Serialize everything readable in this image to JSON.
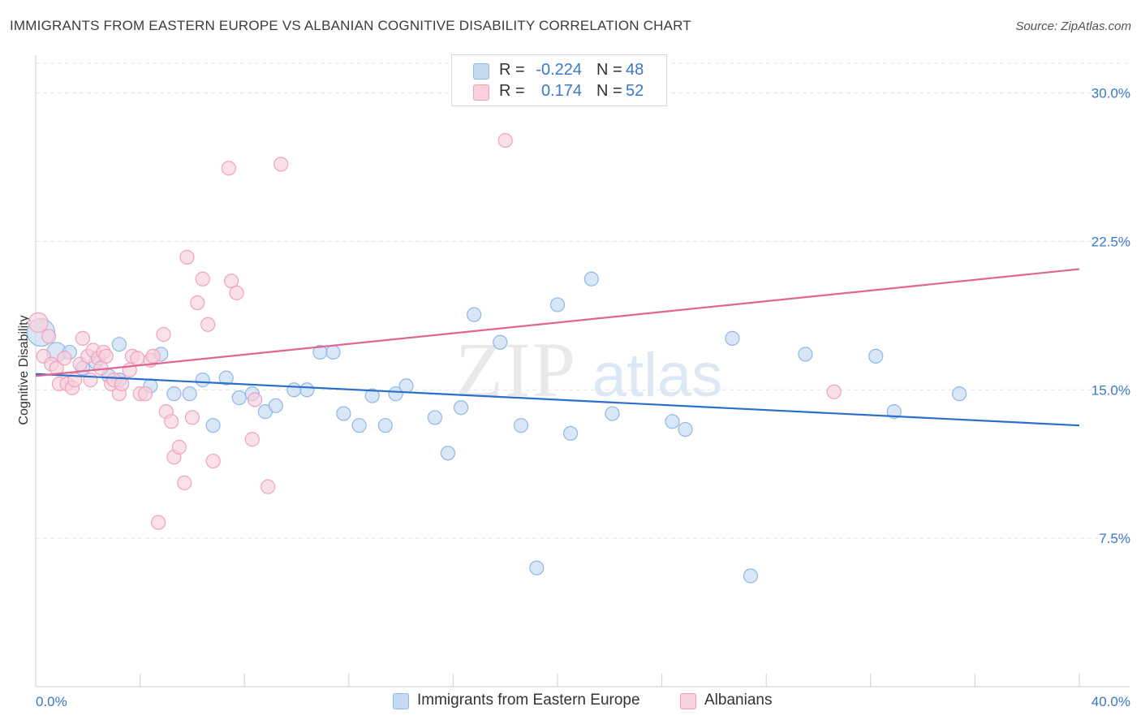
{
  "title": "IMMIGRANTS FROM EASTERN EUROPE VS ALBANIAN COGNITIVE DISABILITY CORRELATION CHART",
  "source": "Source: ZipAtlas.com",
  "watermark": {
    "zip": "ZIP",
    "atlas": "atlas"
  },
  "colors": {
    "blue": "#8fb8e6",
    "blue_fill": "#c5d9f1",
    "blue_line": "#2a6fcb",
    "pink": "#f0a2bd",
    "pink_fill": "#f8cfdc",
    "pink_line": "#e0668f",
    "axis_label": "#3a78c8",
    "grid": "#e3e3e3"
  },
  "legend": {
    "rows": [
      {
        "r_label": "R =",
        "r_value": "-0.224",
        "n_label": "N =",
        "n_value": "48"
      },
      {
        "r_label": "R =",
        "r_value": "0.174",
        "n_label": "N =",
        "n_value": "52"
      }
    ]
  },
  "bottom_legend": {
    "series1": "Immigrants from Eastern Europe",
    "series2": "Albanians"
  },
  "chart_data": {
    "type": "scatter",
    "title": "IMMIGRANTS FROM EASTERN EUROPE VS ALBANIAN COGNITIVE DISABILITY CORRELATION CHART",
    "xlabel": "",
    "ylabel": "Cognitive Disability",
    "xlim": [
      0,
      40
    ],
    "ylim": [
      0,
      31.5
    ],
    "x_tick_labels": [
      "0.0%",
      "40.0%"
    ],
    "y_ticks": [
      7.5,
      15.0,
      22.5,
      30.0
    ],
    "y_tick_labels": [
      "7.5%",
      "15.0%",
      "22.5%",
      "30.0%"
    ],
    "grid": true,
    "legend_position": "top-center",
    "series": [
      {
        "name": "Immigrants from Eastern Europe",
        "R": -0.224,
        "N": 48,
        "trend": {
          "x": [
            0,
            40
          ],
          "y": [
            15.8,
            13.2
          ]
        },
        "points": [
          {
            "x": 0.2,
            "y": 17.9,
            "s": 3
          },
          {
            "x": 0.8,
            "y": 16.9,
            "s": 2
          },
          {
            "x": 1.3,
            "y": 16.9,
            "s": 1
          },
          {
            "x": 1.8,
            "y": 16.1,
            "s": 1
          },
          {
            "x": 2.3,
            "y": 16.4,
            "s": 1
          },
          {
            "x": 2.8,
            "y": 15.7,
            "s": 1
          },
          {
            "x": 3.2,
            "y": 15.5,
            "s": 1
          },
          {
            "x": 3.2,
            "y": 17.3,
            "s": 1
          },
          {
            "x": 4.4,
            "y": 15.2,
            "s": 1
          },
          {
            "x": 4.8,
            "y": 16.8,
            "s": 1
          },
          {
            "x": 5.3,
            "y": 14.8,
            "s": 1
          },
          {
            "x": 5.9,
            "y": 14.8,
            "s": 1
          },
          {
            "x": 6.4,
            "y": 15.5,
            "s": 1
          },
          {
            "x": 6.8,
            "y": 13.2,
            "s": 1
          },
          {
            "x": 7.3,
            "y": 15.6,
            "s": 1
          },
          {
            "x": 7.8,
            "y": 14.6,
            "s": 1
          },
          {
            "x": 8.3,
            "y": 14.8,
            "s": 1
          },
          {
            "x": 8.8,
            "y": 13.9,
            "s": 1
          },
          {
            "x": 9.2,
            "y": 14.2,
            "s": 1
          },
          {
            "x": 9.9,
            "y": 15.0,
            "s": 1
          },
          {
            "x": 10.4,
            "y": 15.0,
            "s": 1
          },
          {
            "x": 10.9,
            "y": 16.9,
            "s": 1
          },
          {
            "x": 11.4,
            "y": 16.9,
            "s": 1
          },
          {
            "x": 11.8,
            "y": 13.8,
            "s": 1
          },
          {
            "x": 12.4,
            "y": 13.2,
            "s": 1
          },
          {
            "x": 12.9,
            "y": 14.7,
            "s": 1
          },
          {
            "x": 13.4,
            "y": 13.2,
            "s": 1
          },
          {
            "x": 13.8,
            "y": 14.8,
            "s": 1
          },
          {
            "x": 14.2,
            "y": 15.2,
            "s": 1
          },
          {
            "x": 15.3,
            "y": 13.6,
            "s": 1
          },
          {
            "x": 15.8,
            "y": 11.8,
            "s": 1
          },
          {
            "x": 16.3,
            "y": 14.1,
            "s": 1
          },
          {
            "x": 16.8,
            "y": 18.8,
            "s": 1
          },
          {
            "x": 17.8,
            "y": 17.4,
            "s": 1
          },
          {
            "x": 18.6,
            "y": 13.2,
            "s": 1
          },
          {
            "x": 19.2,
            "y": 6.0,
            "s": 1
          },
          {
            "x": 20.0,
            "y": 19.3,
            "s": 1
          },
          {
            "x": 20.5,
            "y": 12.8,
            "s": 1
          },
          {
            "x": 21.3,
            "y": 20.6,
            "s": 1
          },
          {
            "x": 22.1,
            "y": 13.8,
            "s": 1
          },
          {
            "x": 24.4,
            "y": 13.4,
            "s": 1
          },
          {
            "x": 24.9,
            "y": 13.0,
            "s": 1
          },
          {
            "x": 26.7,
            "y": 17.6,
            "s": 1
          },
          {
            "x": 27.4,
            "y": 5.6,
            "s": 1
          },
          {
            "x": 29.5,
            "y": 16.8,
            "s": 1
          },
          {
            "x": 32.2,
            "y": 16.7,
            "s": 1
          },
          {
            "x": 32.9,
            "y": 13.9,
            "s": 1
          },
          {
            "x": 35.4,
            "y": 14.8,
            "s": 1
          }
        ]
      },
      {
        "name": "Albanians",
        "R": 0.174,
        "N": 52,
        "trend": {
          "x": [
            0,
            40
          ],
          "y": [
            15.7,
            21.1
          ]
        },
        "points": [
          {
            "x": 0.1,
            "y": 18.4,
            "s": 2
          },
          {
            "x": 0.3,
            "y": 16.7,
            "s": 1
          },
          {
            "x": 0.5,
            "y": 17.7,
            "s": 1
          },
          {
            "x": 0.6,
            "y": 16.3,
            "s": 1
          },
          {
            "x": 0.8,
            "y": 16.1,
            "s": 1
          },
          {
            "x": 0.9,
            "y": 15.3,
            "s": 1
          },
          {
            "x": 1.1,
            "y": 16.6,
            "s": 1
          },
          {
            "x": 1.2,
            "y": 15.3,
            "s": 1
          },
          {
            "x": 1.4,
            "y": 15.1,
            "s": 1
          },
          {
            "x": 1.5,
            "y": 15.5,
            "s": 1
          },
          {
            "x": 1.7,
            "y": 16.3,
            "s": 1
          },
          {
            "x": 1.8,
            "y": 17.6,
            "s": 1
          },
          {
            "x": 2.0,
            "y": 16.7,
            "s": 1
          },
          {
            "x": 2.1,
            "y": 15.5,
            "s": 1
          },
          {
            "x": 2.2,
            "y": 17.0,
            "s": 1
          },
          {
            "x": 2.4,
            "y": 16.6,
            "s": 1
          },
          {
            "x": 2.6,
            "y": 16.9,
            "s": 1
          },
          {
            "x": 2.7,
            "y": 16.7,
            "s": 1
          },
          {
            "x": 2.9,
            "y": 15.3,
            "s": 1
          },
          {
            "x": 3.0,
            "y": 15.5,
            "s": 1
          },
          {
            "x": 3.2,
            "y": 14.8,
            "s": 1
          },
          {
            "x": 3.3,
            "y": 15.3,
            "s": 1
          },
          {
            "x": 3.6,
            "y": 16.0,
            "s": 1
          },
          {
            "x": 3.7,
            "y": 16.7,
            "s": 1
          },
          {
            "x": 3.9,
            "y": 16.6,
            "s": 1
          },
          {
            "x": 4.0,
            "y": 14.8,
            "s": 1
          },
          {
            "x": 4.2,
            "y": 14.8,
            "s": 1
          },
          {
            "x": 4.4,
            "y": 16.5,
            "s": 1
          },
          {
            "x": 4.5,
            "y": 16.7,
            "s": 1
          },
          {
            "x": 4.7,
            "y": 8.3,
            "s": 1
          },
          {
            "x": 4.9,
            "y": 17.8,
            "s": 1
          },
          {
            "x": 5.0,
            "y": 13.9,
            "s": 1
          },
          {
            "x": 5.2,
            "y": 13.4,
            "s": 1
          },
          {
            "x": 5.3,
            "y": 11.6,
            "s": 1
          },
          {
            "x": 5.5,
            "y": 12.1,
            "s": 1
          },
          {
            "x": 5.7,
            "y": 10.3,
            "s": 1
          },
          {
            "x": 5.8,
            "y": 21.7,
            "s": 1
          },
          {
            "x": 6.0,
            "y": 13.6,
            "s": 1
          },
          {
            "x": 6.2,
            "y": 19.4,
            "s": 1
          },
          {
            "x": 6.4,
            "y": 20.6,
            "s": 1
          },
          {
            "x": 6.6,
            "y": 18.3,
            "s": 1
          },
          {
            "x": 6.8,
            "y": 11.4,
            "s": 1
          },
          {
            "x": 7.4,
            "y": 26.2,
            "s": 1
          },
          {
            "x": 7.5,
            "y": 20.5,
            "s": 1
          },
          {
            "x": 7.7,
            "y": 19.9,
            "s": 1
          },
          {
            "x": 8.3,
            "y": 12.5,
            "s": 1
          },
          {
            "x": 8.4,
            "y": 14.5,
            "s": 1
          },
          {
            "x": 8.9,
            "y": 10.1,
            "s": 1
          },
          {
            "x": 9.4,
            "y": 26.4,
            "s": 1
          },
          {
            "x": 18.0,
            "y": 27.6,
            "s": 1
          },
          {
            "x": 30.6,
            "y": 14.9,
            "s": 1
          },
          {
            "x": 2.5,
            "y": 16.1,
            "s": 1
          }
        ]
      }
    ]
  }
}
